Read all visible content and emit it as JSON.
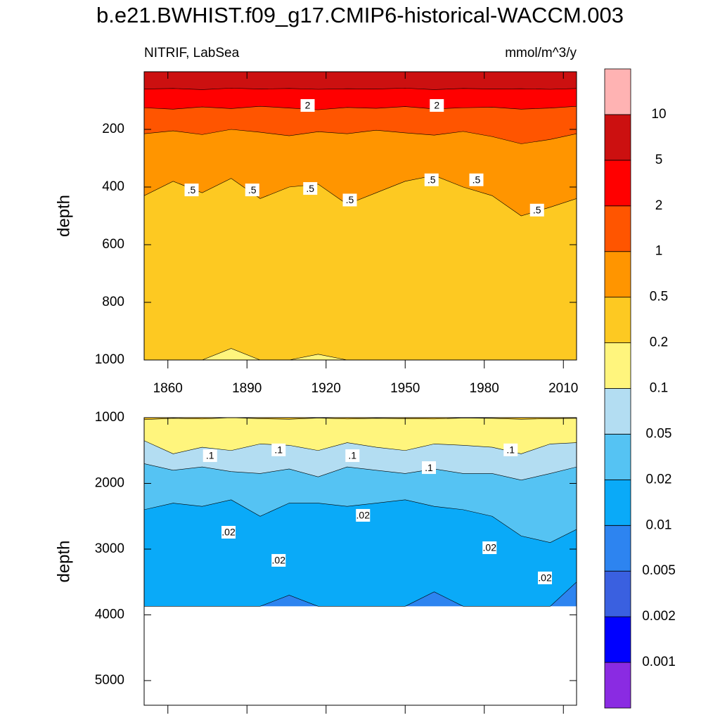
{
  "chart_data": {
    "type": "contour",
    "title": "b.e21.BWHIST.f09_g17.CMIP6-historical-WACCM.003",
    "subtitle_left": "NITRIF, LabSea",
    "subtitle_right": "mmol/m^3/y",
    "levels": [
      0.001,
      0.002,
      0.005,
      0.01,
      0.02,
      0.05,
      0.1,
      0.2,
      0.5,
      1,
      2,
      5,
      10
    ],
    "colors": [
      "#8a2be2",
      "#0000ff",
      "#3a60e0",
      "#2d84f0",
      "#0aaaf8",
      "#55c3f3",
      "#b3ddf2",
      "#fff57d",
      "#fdc922",
      "#ff9500",
      "#ff5500",
      "#ff0000",
      "#cc1010",
      "#ffb3b3"
    ],
    "panels": [
      {
        "ylabel": "depth",
        "ylim": [
          1000,
          0
        ],
        "max_depth": 1000,
        "xlim": [
          1851,
          2015
        ],
        "xticks": [
          1860,
          1890,
          1920,
          1950,
          1980,
          2010
        ],
        "show_xtick_labels": true,
        "yticks": [
          200,
          400,
          600,
          800,
          1000
        ],
        "x": [
          1851,
          1862,
          1873,
          1884,
          1895,
          1906,
          1917,
          1928,
          1939,
          1950,
          1961,
          1972,
          1983,
          1994,
          2005,
          2015
        ],
        "contours": [
          {
            "level": 0.2,
            "depth": [
              1000,
              1000,
              1000,
              960,
              1000,
              1000,
              980,
              1000,
              1000,
              1000,
              1000,
              1000,
              1000,
              1000,
              1000,
              1000
            ]
          },
          {
            "level": 0.5,
            "depth": [
              430,
              380,
              420,
              370,
              440,
              400,
              390,
              460,
              420,
              380,
              360,
              400,
              430,
              500,
              470,
              440
            ]
          },
          {
            "level": 1,
            "depth": [
              215,
              205,
              218,
              200,
              210,
              222,
              208,
              215,
              203,
              212,
              220,
              207,
              225,
              250,
              235,
              215
            ]
          },
          {
            "level": 2,
            "depth": [
              125,
              130,
              122,
              128,
              120,
              126,
              132,
              124,
              127,
              121,
              129,
              125,
              123,
              130,
              126,
              120
            ]
          },
          {
            "level": 5,
            "depth": [
              60,
              58,
              62,
              57,
              60,
              58,
              61,
              59,
              60,
              57,
              62,
              58,
              60,
              59,
              61,
              58
            ]
          }
        ],
        "contour_labels": [
          {
            "text": "2",
            "x": 1913,
            "depth": 117
          },
          {
            "text": "2",
            "x": 1962,
            "depth": 117
          },
          {
            "text": ".5",
            "x": 1869,
            "depth": 410
          },
          {
            "text": ".5",
            "x": 1892,
            "depth": 410
          },
          {
            "text": ".5",
            "x": 1914,
            "depth": 405
          },
          {
            "text": ".5",
            "x": 1929,
            "depth": 445
          },
          {
            "text": ".5",
            "x": 1960,
            "depth": 375
          },
          {
            "text": ".5",
            "x": 1977,
            "depth": 375
          },
          {
            "text": ".5",
            "x": 2000,
            "depth": 480
          }
        ]
      },
      {
        "ylabel": "depth",
        "ylim": [
          5375,
          1000
        ],
        "max_depth": 3870,
        "xlim": [
          1851,
          2015
        ],
        "xticks": [
          1860,
          1890,
          1920,
          1950,
          1980,
          2010
        ],
        "show_xtick_labels": false,
        "yticks": [
          1000,
          2000,
          3000,
          4000,
          5000
        ],
        "x": [
          1851,
          1862,
          1873,
          1884,
          1895,
          1906,
          1917,
          1928,
          1939,
          1950,
          1961,
          1972,
          1983,
          1994,
          2005,
          2015
        ],
        "contours": [
          {
            "level": 0.01,
            "depth": [
              3870,
              3870,
              3870,
              3870,
              3870,
              3700,
              3870,
              3870,
              3870,
              3870,
              3650,
              3870,
              3870,
              3870,
              3870,
              3500
            ]
          },
          {
            "level": 0.02,
            "depth": [
              2400,
              2300,
              2350,
              2250,
              2500,
              2300,
              2300,
              2350,
              2300,
              2250,
              2350,
              2400,
              2500,
              2800,
              2900,
              2700
            ]
          },
          {
            "level": 0.05,
            "depth": [
              1700,
              1800,
              1750,
              1820,
              1850,
              1780,
              1900,
              1750,
              1800,
              1850,
              1780,
              1850,
              1850,
              1950,
              1850,
              1750
            ]
          },
          {
            "level": 0.1,
            "depth": [
              1350,
              1550,
              1450,
              1500,
              1400,
              1420,
              1500,
              1380,
              1450,
              1500,
              1400,
              1420,
              1450,
              1550,
              1400,
              1380
            ]
          },
          {
            "level": 0.2,
            "depth": [
              1030,
              1010,
              1020,
              1000,
              1015,
              1025,
              1005,
              1020,
              1010,
              1015,
              1020,
              1005,
              1010,
              1025,
              1015,
              1010
            ]
          }
        ],
        "contour_labels": [
          {
            "text": ".1",
            "x": 1876,
            "depth": 1578
          },
          {
            "text": ".1",
            "x": 1902,
            "depth": 1490
          },
          {
            "text": ".1",
            "x": 1930,
            "depth": 1578
          },
          {
            "text": ".1",
            "x": 1959,
            "depth": 1760
          },
          {
            "text": ".1",
            "x": 1990,
            "depth": 1490
          },
          {
            "text": ".02",
            "x": 1883,
            "depth": 2743
          },
          {
            "text": ".02",
            "x": 1902,
            "depth": 3171
          },
          {
            "text": ".02",
            "x": 1934,
            "depth": 2486
          },
          {
            "text": ".02",
            "x": 1982,
            "depth": 2979
          },
          {
            "text": ".02",
            "x": 2003,
            "depth": 3438
          }
        ]
      }
    ]
  }
}
